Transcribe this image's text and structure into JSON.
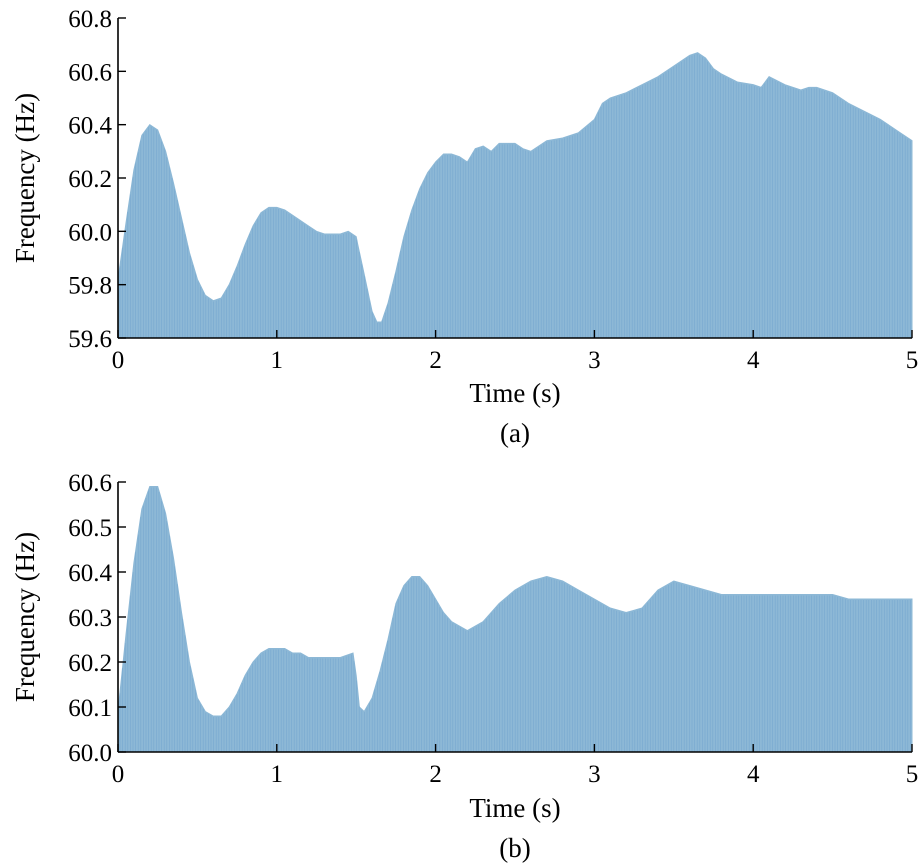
{
  "chart_data": [
    {
      "type": "area",
      "panel_label": "(a)",
      "xlabel": "Time (s)",
      "ylabel": "Frequency (Hz)",
      "xlim": [
        0,
        5
      ],
      "ylim": [
        59.6,
        60.8
      ],
      "xticks": [
        "0",
        "1",
        "2",
        "3",
        "4",
        "5"
      ],
      "yticks": [
        "59.6",
        "59.8",
        "60.0",
        "60.2",
        "60.4",
        "60.6",
        "60.8"
      ],
      "fill_color": "#8db8d6",
      "grid": false,
      "x": [
        0,
        0.05,
        0.1,
        0.15,
        0.2,
        0.25,
        0.3,
        0.35,
        0.4,
        0.45,
        0.5,
        0.55,
        0.6,
        0.65,
        0.7,
        0.75,
        0.8,
        0.85,
        0.9,
        0.95,
        1.0,
        1.05,
        1.1,
        1.15,
        1.2,
        1.25,
        1.3,
        1.35,
        1.4,
        1.45,
        1.5,
        1.51,
        1.55,
        1.6,
        1.63,
        1.66,
        1.7,
        1.75,
        1.8,
        1.85,
        1.9,
        1.95,
        2.0,
        2.05,
        2.1,
        2.15,
        2.2,
        2.25,
        2.3,
        2.35,
        2.4,
        2.45,
        2.5,
        2.55,
        2.6,
        2.7,
        2.8,
        2.9,
        3.0,
        3.05,
        3.1,
        3.2,
        3.3,
        3.4,
        3.5,
        3.6,
        3.65,
        3.7,
        3.75,
        3.8,
        3.9,
        4.0,
        4.05,
        4.1,
        4.2,
        4.3,
        4.35,
        4.4,
        4.5,
        4.6,
        4.7,
        4.8,
        4.9,
        5.0
      ],
      "y": [
        59.82,
        60.03,
        60.23,
        60.36,
        60.4,
        60.38,
        60.3,
        60.18,
        60.05,
        59.92,
        59.82,
        59.76,
        59.74,
        59.75,
        59.8,
        59.87,
        59.95,
        60.02,
        60.07,
        60.09,
        60.09,
        60.08,
        60.06,
        60.04,
        60.02,
        60.0,
        59.99,
        59.99,
        59.99,
        60.0,
        59.98,
        59.95,
        59.84,
        59.7,
        59.66,
        59.66,
        59.73,
        59.85,
        59.98,
        60.08,
        60.16,
        60.22,
        60.26,
        60.29,
        60.29,
        60.28,
        60.26,
        60.31,
        60.32,
        60.3,
        60.33,
        60.33,
        60.33,
        60.31,
        60.3,
        60.34,
        60.35,
        60.37,
        60.42,
        60.48,
        60.5,
        60.52,
        60.55,
        60.58,
        60.62,
        60.66,
        60.67,
        60.65,
        60.61,
        60.59,
        60.56,
        60.55,
        60.54,
        60.58,
        60.55,
        60.53,
        60.54,
        60.54,
        60.52,
        60.48,
        60.45,
        60.42,
        60.38,
        60.34
      ]
    },
    {
      "type": "area",
      "panel_label": "(b)",
      "xlabel": "Time (s)",
      "ylabel": "Frequency (Hz)",
      "xlim": [
        0,
        5
      ],
      "ylim": [
        60.0,
        60.6
      ],
      "xticks": [
        "0",
        "1",
        "2",
        "3",
        "4",
        "5"
      ],
      "yticks": [
        "60.0",
        "60.1",
        "60.2",
        "60.3",
        "60.4",
        "60.5",
        "60.6"
      ],
      "fill_color": "#8db8d6",
      "grid": false,
      "x": [
        0,
        0.05,
        0.1,
        0.15,
        0.2,
        0.25,
        0.3,
        0.35,
        0.4,
        0.45,
        0.5,
        0.55,
        0.6,
        0.65,
        0.7,
        0.75,
        0.8,
        0.85,
        0.9,
        0.95,
        1.0,
        1.05,
        1.1,
        1.15,
        1.2,
        1.3,
        1.4,
        1.48,
        1.5,
        1.52,
        1.55,
        1.6,
        1.65,
        1.7,
        1.75,
        1.8,
        1.85,
        1.9,
        1.95,
        2.0,
        2.05,
        2.1,
        2.15,
        2.2,
        2.25,
        2.3,
        2.4,
        2.5,
        2.6,
        2.7,
        2.8,
        2.9,
        3.0,
        3.1,
        3.2,
        3.3,
        3.4,
        3.5,
        3.6,
        3.7,
        3.8,
        3.9,
        4.0,
        4.1,
        4.2,
        4.3,
        4.4,
        4.5,
        4.6,
        4.7,
        4.8,
        4.9,
        5.0
      ],
      "y": [
        60.09,
        60.26,
        60.42,
        60.54,
        60.59,
        60.59,
        60.53,
        60.43,
        60.31,
        60.2,
        60.12,
        60.09,
        60.08,
        60.08,
        60.1,
        60.13,
        60.17,
        60.2,
        60.22,
        60.23,
        60.23,
        60.23,
        60.22,
        60.22,
        60.21,
        60.21,
        60.21,
        60.22,
        60.17,
        60.1,
        60.09,
        60.12,
        60.18,
        60.25,
        60.33,
        60.37,
        60.39,
        60.39,
        60.37,
        60.34,
        60.31,
        60.29,
        60.28,
        60.27,
        60.28,
        60.29,
        60.33,
        60.36,
        60.38,
        60.39,
        60.38,
        60.36,
        60.34,
        60.32,
        60.31,
        60.32,
        60.36,
        60.38,
        60.37,
        60.36,
        60.35,
        60.35,
        60.35,
        60.35,
        60.35,
        60.35,
        60.35,
        60.35,
        60.34,
        60.34,
        60.34,
        60.34,
        60.34
      ]
    }
  ]
}
